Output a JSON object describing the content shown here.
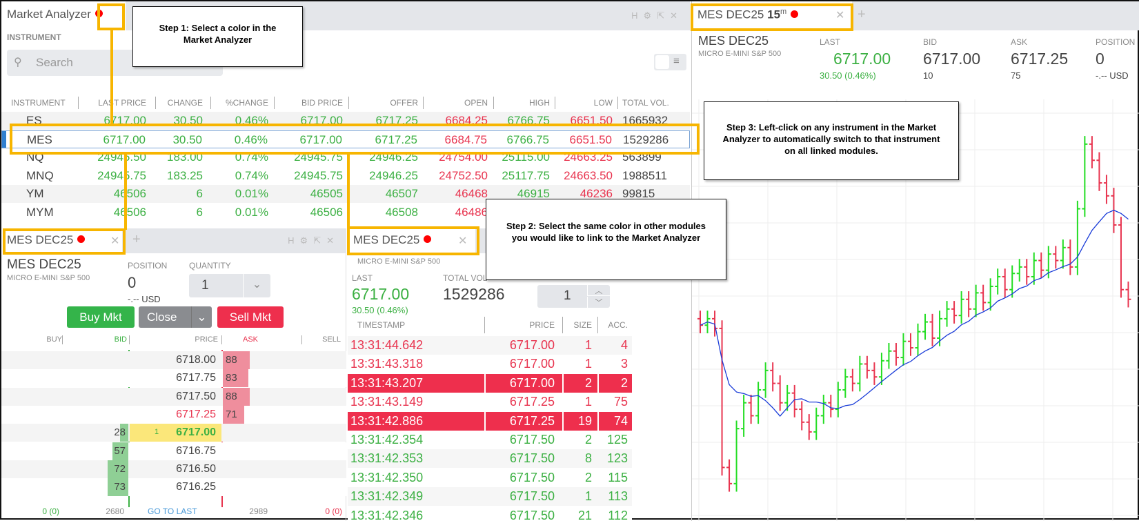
{
  "market_analyzer": {
    "title": "Market Analyzer",
    "section_label": "INSTRUMENT",
    "search_placeholder": "Search",
    "columns": [
      "INSTRUMENT",
      "LAST PRICE",
      "CHANGE",
      "%CHANGE",
      "BID PRICE",
      "OFFER",
      "OPEN",
      "HIGH",
      "LOW",
      "TOTAL VOL."
    ],
    "rows": [
      [
        "ES",
        "6717.00",
        "30.50",
        "0.46%",
        "6717.00",
        "6717.25",
        "6684.25",
        "6766.75",
        "6651.50",
        "1665932"
      ],
      [
        "MES",
        "6717.00",
        "30.50",
        "0.46%",
        "6717.00",
        "6717.25",
        "6684.75",
        "6766.75",
        "6651.50",
        "1529286"
      ],
      [
        "NQ",
        "24945.50",
        "183.00",
        "0.74%",
        "24945.75",
        "24946.25",
        "24754.00",
        "25115.00",
        "24663.25",
        "563899"
      ],
      [
        "MNQ",
        "24945.75",
        "183.25",
        "0.74%",
        "24945.75",
        "24946.25",
        "24752.50",
        "25117.75",
        "24663.50",
        "1988511"
      ],
      [
        "YM",
        "46506",
        "6",
        "0.01%",
        "46505",
        "46507",
        "46468",
        "46915",
        "46236",
        "99815"
      ],
      [
        "MYM",
        "46506",
        "6",
        "0.01%",
        "46506",
        "46508",
        "46486",
        "",
        "",
        " "
      ]
    ],
    "selected_row": "MES",
    "link_color": "#ff0000"
  },
  "order_module": {
    "tab": "MES DEC25",
    "symbol": "MES DEC25",
    "description": "MICRO E-MINI S&P 500",
    "position_label": "POSITION",
    "position": "0",
    "pnl": "-.-- USD",
    "quantity_label": "QUANTITY",
    "quantity": "1",
    "buy_label": "Buy Mkt",
    "close_label": "Close",
    "sell_label": "Sell Mkt",
    "headers": [
      "BUY",
      "BID",
      "PRICE",
      "ASK",
      "SELL"
    ],
    "ladder": [
      {
        "price": "6718.00",
        "ask": "88",
        "bid": "",
        "last": ""
      },
      {
        "price": "6717.75",
        "ask": "83",
        "bid": "",
        "last": ""
      },
      {
        "price": "6717.50",
        "ask": "88",
        "bid": "",
        "last": ""
      },
      {
        "price": "6717.25",
        "ask": "71",
        "bid": "",
        "last": ""
      },
      {
        "price": "6717.00",
        "ask": "",
        "bid": "28",
        "last": "1"
      },
      {
        "price": "6716.75",
        "ask": "",
        "bid": "57",
        "last": ""
      },
      {
        "price": "6716.50",
        "ask": "",
        "bid": "72",
        "last": ""
      },
      {
        "price": "6716.25",
        "ask": "",
        "bid": "73",
        "last": ""
      }
    ],
    "footer": {
      "buy": "0 (0)",
      "bid_total": "2680",
      "go_to_last": "GO TO LAST",
      "ask_total": "2989",
      "sell": "0 (0)"
    }
  },
  "time_sales": {
    "tab": "MES DEC25",
    "description": "MICRO E-MINI S&P 500",
    "last_label": "LAST",
    "last": "6717.00",
    "change": "30.50 (0.46%)",
    "volume_label": "TOTAL VOL",
    "volume": "1529286",
    "stepper": "1",
    "headers": [
      "TIMESTAMP",
      "PRICE",
      "SIZE",
      "ACC."
    ],
    "rows": [
      {
        "time": "13:31:44.642",
        "price": "6717.00",
        "size": "1",
        "acc": "4",
        "side": "sell",
        "highlight": false
      },
      {
        "time": "13:31:43.318",
        "price": "6717.00",
        "size": "1",
        "acc": "3",
        "side": "sell",
        "highlight": false
      },
      {
        "time": "13:31:43.207",
        "price": "6717.00",
        "size": "2",
        "acc": "2",
        "side": "sell",
        "highlight": true
      },
      {
        "time": "13:31:43.149",
        "price": "6717.25",
        "size": "1",
        "acc": "75",
        "side": "sell",
        "highlight": false
      },
      {
        "time": "13:31:42.886",
        "price": "6717.25",
        "size": "19",
        "acc": "74",
        "side": "sell",
        "highlight": true
      },
      {
        "time": "13:31:42.354",
        "price": "6717.50",
        "size": "2",
        "acc": "125",
        "side": "buy",
        "highlight": false
      },
      {
        "time": "13:31:42.353",
        "price": "6717.50",
        "size": "8",
        "acc": "123",
        "side": "buy",
        "highlight": false
      },
      {
        "time": "13:31:42.350",
        "price": "6717.50",
        "size": "2",
        "acc": "115",
        "side": "buy",
        "highlight": false
      },
      {
        "time": "13:31:42.349",
        "price": "6717.50",
        "size": "1",
        "acc": "113",
        "side": "buy",
        "highlight": false
      },
      {
        "time": "13:31:42.346",
        "price": "6717.50",
        "size": "21",
        "acc": "112",
        "side": "buy",
        "highlight": false
      }
    ]
  },
  "chart_module": {
    "tab": "MES DEC25",
    "interval": "15",
    "interval_unit": "m",
    "symbol": "MES DEC25",
    "description": "MICRO E-MINI S&P 500",
    "last_label": "LAST",
    "last": "6717.00",
    "change": "30.50 (0.46%)",
    "bid_label": "BID",
    "bid": "6717.00",
    "bid_size": "10",
    "ask_label": "ASK",
    "ask": "6717.25",
    "ask_size": "75",
    "position_label": "POSITION",
    "position": "0",
    "pnl": "-.-- USD",
    "closes": [
      6704,
      6706,
      6703,
      6660,
      6655,
      6672,
      6680,
      6676,
      6684,
      6690,
      6686,
      6680,
      6683,
      6678,
      6674,
      6671,
      6676,
      6680,
      6678,
      6684,
      6688,
      6686,
      6692,
      6690,
      6688,
      6693,
      6696,
      6694,
      6699,
      6697,
      6702,
      6705,
      6700,
      6706,
      6709,
      6707,
      6712,
      6709,
      6714,
      6711,
      6716,
      6719,
      6715,
      6720,
      6722,
      6719,
      6724,
      6721,
      6726,
      6724,
      6728,
      6722,
      6740,
      6760,
      6755,
      6748,
      6744,
      6735,
      6715,
      6712
    ],
    "up_color": "#22dd22",
    "down_color": "#e8344f",
    "ma_color": "#1a3cd8"
  },
  "annotations": {
    "step1": "Step 1: Select a color in the Market Analyzer",
    "step2": "Step 2: Select the same color in other modules you would like to link to the Market Analyzer",
    "step3": "Step 3: Left-click on any instrument in the Market Analyzer to automatically switch to that instrument on all linked modules."
  }
}
